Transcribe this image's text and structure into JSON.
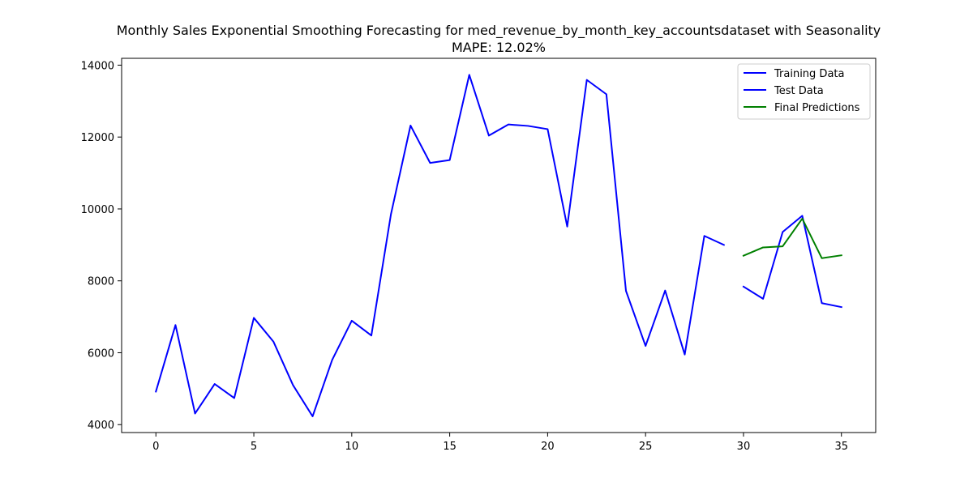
{
  "chart_data": {
    "type": "line",
    "title": "Monthly Sales Exponential Smoothing Forecasting for med_revenue_by_month_key_accountsdataset with Seasonality",
    "subtitle": "MAPE: 12.02%",
    "xlabel": "",
    "ylabel": "",
    "xlim": [
      -1.75,
      36.75
    ],
    "ylim": [
      3780,
      14190
    ],
    "xticks": [
      0,
      5,
      10,
      15,
      20,
      25,
      30,
      35
    ],
    "yticks": [
      4000,
      6000,
      8000,
      10000,
      12000,
      14000
    ],
    "grid": false,
    "legend_position": "top-right",
    "series": [
      {
        "name": "Training Data",
        "color": "#0000ff",
        "x": [
          0,
          1,
          2,
          3,
          4,
          5,
          6,
          7,
          8,
          9,
          10,
          11,
          12,
          13,
          14,
          15,
          16,
          17,
          18,
          19,
          20,
          21,
          22,
          23,
          24,
          25,
          26,
          27,
          28,
          29
        ],
        "y": [
          4920,
          6770,
          4310,
          5130,
          4740,
          6970,
          6310,
          5100,
          4230,
          5800,
          6890,
          6480,
          9850,
          12320,
          11280,
          11360,
          13730,
          12040,
          12350,
          12310,
          12220,
          9510,
          13590,
          13190,
          7720,
          6190,
          7730,
          5950,
          9250,
          9000
        ]
      },
      {
        "name": "Test Data",
        "color": "#0000ff",
        "x": [
          30,
          31,
          32,
          33,
          34,
          35
        ],
        "y": [
          7840,
          7500,
          9360,
          9810,
          7380,
          7270
        ]
      },
      {
        "name": "Final Predictions",
        "color": "#008000",
        "x": [
          30,
          31,
          32,
          33,
          34,
          35
        ],
        "y": [
          8700,
          8930,
          8960,
          9730,
          8630,
          8710
        ]
      }
    ]
  }
}
